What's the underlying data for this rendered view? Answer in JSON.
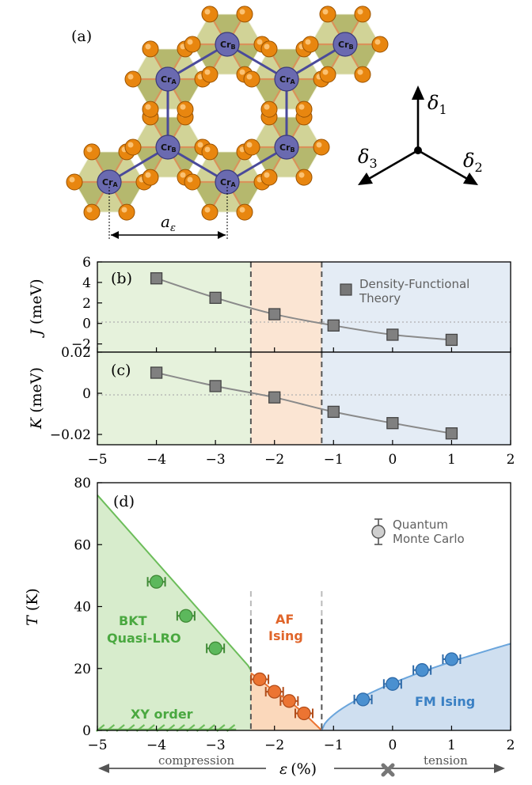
{
  "panel_a": {
    "label": "(a)",
    "site_a": "Cr",
    "site_a_sub": "A",
    "site_b": "Cr",
    "site_b_sub": "B",
    "lattice_symbol": "a",
    "lattice_sub": "ε",
    "delta_symbol": "δ",
    "delta1_sub": "1",
    "delta2_sub": "2",
    "delta3_sub": "3",
    "colors": {
      "ion": "#e8860f",
      "cr": "#6a6ab0",
      "octahedron": "#a8ab55",
      "bond": "#3a3a8a"
    }
  },
  "chart_data": [
    {
      "type": "line",
      "panel_label": "(b)",
      "ylabel": "J (meV)",
      "ylabel_symbol": "J",
      "ylabel_unit": "(meV)",
      "xlim": [
        -5,
        2
      ],
      "ylim": [
        -2.8,
        6
      ],
      "yticks": [
        "6",
        "4",
        "2",
        "0",
        "−2"
      ],
      "ytick_values": [
        6,
        4,
        2,
        0,
        -2
      ],
      "series": [
        {
          "name": "Density-Functional Theory",
          "x": [
            -4,
            -3,
            -2,
            -1,
            0,
            1
          ],
          "y": [
            4.4,
            2.5,
            0.9,
            -0.2,
            -1.1,
            -1.6
          ]
        }
      ],
      "legend_line1": "Density-Functional",
      "legend_line2": "Theory",
      "legend_position": "top-right",
      "regions": [
        {
          "from": -5,
          "to": -2.4,
          "color": "#e6f2dc"
        },
        {
          "from": -2.4,
          "to": -1.2,
          "color": "#fbe5d3"
        },
        {
          "from": -1.2,
          "to": 2,
          "color": "#e4ecf5"
        }
      ],
      "phase_boundaries": [
        -2.4,
        -1.2
      ]
    },
    {
      "type": "line",
      "panel_label": "(c)",
      "ylabel": "K (meV)",
      "ylabel_symbol": "K",
      "ylabel_unit": "(meV)",
      "xlim": [
        -5,
        2
      ],
      "ylim": [
        -0.025,
        0.02
      ],
      "yticks": [
        "0.02",
        "0",
        "−0.02"
      ],
      "ytick_values": [
        0.02,
        0,
        -0.02
      ],
      "xticks": [
        "−5",
        "−4",
        "−3",
        "−2",
        "−1",
        "0",
        "1",
        "2"
      ],
      "xtick_values": [
        -5,
        -4,
        -3,
        -2,
        -1,
        0,
        1,
        2
      ],
      "series": [
        {
          "name": "",
          "x": [
            -4,
            -3,
            -2,
            -1,
            0,
            1
          ],
          "y": [
            0.01,
            0.0035,
            -0.002,
            -0.009,
            -0.0145,
            -0.0195
          ]
        }
      ]
    },
    {
      "type": "scatter",
      "panel_label": "(d)",
      "ylabel": "T (K)",
      "ylabel_symbol": "T",
      "ylabel_unit": "(K)",
      "xlabel": "ε (%)",
      "xlabel_symbol": "ε",
      "xlabel_unit": "(%)",
      "xlim": [
        -5,
        2
      ],
      "ylim": [
        0,
        80
      ],
      "xticks": [
        "−5",
        "−4",
        "−3",
        "−2",
        "−1",
        "0",
        "1",
        "2"
      ],
      "xtick_values": [
        -5,
        -4,
        -3,
        -2,
        -1,
        0,
        1,
        2
      ],
      "yticks": [
        "0",
        "20",
        "40",
        "60",
        "80"
      ],
      "ytick_values": [
        0,
        20,
        40,
        60,
        80
      ],
      "legend_line1": "Quantum",
      "legend_line2": "Monte Carlo",
      "legend_position": "top-right",
      "series": [
        {
          "name": "BKT",
          "color": "#5cb85c",
          "x": [
            -4,
            -3.5,
            -3
          ],
          "y": [
            48,
            37,
            26.5
          ]
        },
        {
          "name": "AF",
          "color": "#ec7432",
          "x": [
            -2.25,
            -2,
            -1.75,
            -1.5
          ],
          "y": [
            16.5,
            12.5,
            9.5,
            5.5
          ]
        },
        {
          "name": "FM",
          "color": "#4a90d0",
          "x": [
            -0.5,
            0,
            0.5,
            1
          ],
          "y": [
            10,
            15,
            19.5,
            23
          ]
        }
      ],
      "phase_boundaries": [
        -2.4,
        -1.2
      ],
      "region_labels": {
        "bkt_line1": "BKT",
        "bkt_line2": "Quasi-LRO",
        "xy": "XY order",
        "af_line1": "AF",
        "af_line2": "Ising",
        "fm": "FM Ising"
      },
      "arrow_labels": {
        "left": "compression",
        "right": "tension"
      },
      "colors": {
        "green_fill": "#d7eccc",
        "green_line": "#6cbd5a",
        "green_text": "#4aa840",
        "orange_fill": "#fbd8bb",
        "orange_line": "#ec7432",
        "orange_text": "#e0652a",
        "blue_fill": "#cfdff0",
        "blue_line": "#6aa5dc",
        "blue_text": "#3a80c4"
      }
    }
  ]
}
